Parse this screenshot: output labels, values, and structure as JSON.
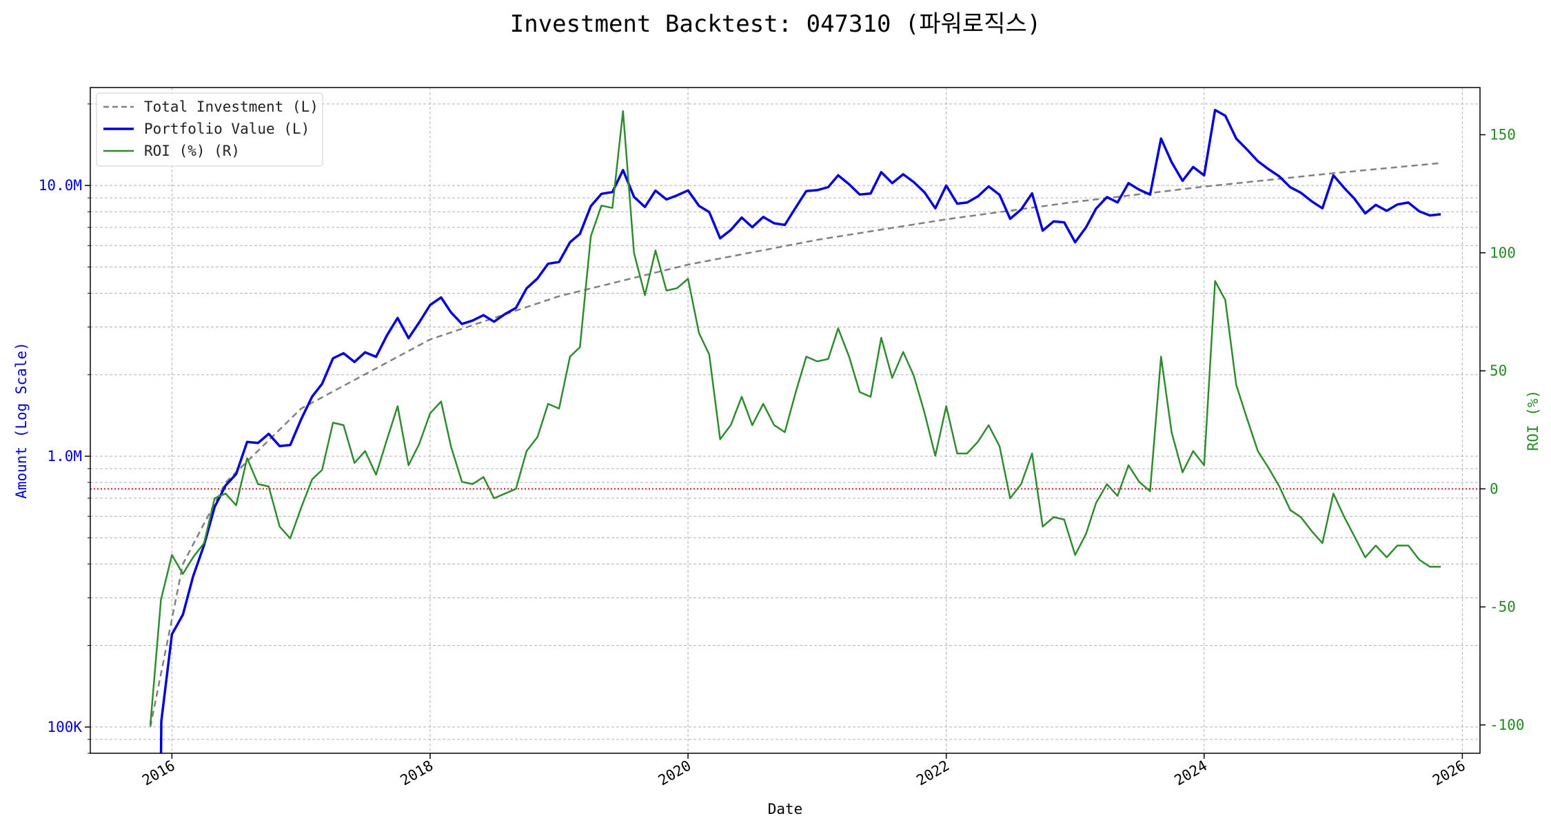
{
  "chart_data": {
    "type": "line",
    "title": "Investment Backtest: 047310 (파워로직스)",
    "xlabel": "Date",
    "ylabel_left": "Amount (Log Scale)",
    "ylabel_right": "ROI (%)",
    "left_scale": "log",
    "left_ylim": [
      80000,
      23000000
    ],
    "right_ylim": [
      -112,
      170
    ],
    "xlim": [
      "2015-05-15",
      "2026-02-20"
    ],
    "x_ticks": [
      "2016",
      "2018",
      "2020",
      "2022",
      "2024",
      "2026"
    ],
    "left_ticks": [
      {
        "value": 100000,
        "label": "100K"
      },
      {
        "value": 1000000,
        "label": "1.0M"
      },
      {
        "value": 10000000,
        "label": "10.0M"
      }
    ],
    "right_ticks": [
      {
        "value": 150,
        "label": "150"
      },
      {
        "value": 100,
        "label": "100"
      },
      {
        "value": 50,
        "label": "50"
      },
      {
        "value": 0,
        "label": "0"
      },
      {
        "value": -50,
        "label": "-50"
      },
      {
        "value": -100,
        "label": "-100"
      }
    ],
    "zero_reference_line": {
      "axis": "right",
      "value": 0,
      "color": "#cc0000",
      "style": "dotted"
    },
    "grid": true,
    "legend_position": "top-left",
    "colors": {
      "total": "#808080",
      "portfolio": "#0000dd",
      "roi": "#2e8b2e"
    },
    "series": [
      {
        "name": "Total Investment (L)",
        "axis": "left",
        "style": "dashed",
        "color": "#808080",
        "points": [
          [
            "2015-11-01",
            100000
          ],
          [
            "2016-02-01",
            400000
          ],
          [
            "2016-06-01",
            800000
          ],
          [
            "2017-01-01",
            1500000
          ],
          [
            "2018-01-01",
            2700000
          ],
          [
            "2019-01-01",
            3900000
          ],
          [
            "2020-01-01",
            5100000
          ],
          [
            "2021-01-01",
            6300000
          ],
          [
            "2022-01-01",
            7500000
          ],
          [
            "2023-01-01",
            8700000
          ],
          [
            "2024-01-01",
            9900000
          ],
          [
            "2025-01-01",
            11100000
          ],
          [
            "2025-11-01",
            12100000
          ]
        ]
      },
      {
        "name": "Portfolio Value (L)",
        "axis": "left",
        "style": "solid",
        "color": "#0000dd",
        "points": [
          [
            "2015-12-01",
            75000
          ],
          [
            "2015-12-02",
            105000
          ],
          [
            "2016-01-01",
            220000
          ],
          [
            "2016-02-01",
            260000
          ],
          [
            "2016-03-01",
            360000
          ],
          [
            "2016-04-01",
            470000
          ],
          [
            "2016-05-01",
            650000
          ],
          [
            "2016-06-01",
            780000
          ],
          [
            "2016-07-01",
            860000
          ],
          [
            "2016-08-01",
            1130000
          ],
          [
            "2016-09-01",
            1120000
          ],
          [
            "2016-10-01",
            1210000
          ],
          [
            "2016-11-01",
            1090000
          ],
          [
            "2016-12-01",
            1100000
          ],
          [
            "2017-01-01",
            1370000
          ],
          [
            "2017-02-01",
            1660000
          ],
          [
            "2017-03-01",
            1850000
          ],
          [
            "2017-04-01",
            2300000
          ],
          [
            "2017-05-01",
            2400000
          ],
          [
            "2017-06-01",
            2230000
          ],
          [
            "2017-07-01",
            2420000
          ],
          [
            "2017-08-01",
            2330000
          ],
          [
            "2017-09-01",
            2800000
          ],
          [
            "2017-10-01",
            3240000
          ],
          [
            "2017-11-01",
            2730000
          ],
          [
            "2017-12-01",
            3120000
          ],
          [
            "2018-01-01",
            3620000
          ],
          [
            "2018-02-01",
            3860000
          ],
          [
            "2018-03-01",
            3400000
          ],
          [
            "2018-04-01",
            3080000
          ],
          [
            "2018-05-01",
            3170000
          ],
          [
            "2018-06-01",
            3320000
          ],
          [
            "2018-07-01",
            3140000
          ],
          [
            "2018-08-01",
            3350000
          ],
          [
            "2018-09-01",
            3530000
          ],
          [
            "2018-10-01",
            4170000
          ],
          [
            "2018-11-01",
            4540000
          ],
          [
            "2018-12-01",
            5140000
          ],
          [
            "2019-01-01",
            5220000
          ],
          [
            "2019-02-01",
            6170000
          ],
          [
            "2019-03-01",
            6630000
          ],
          [
            "2019-04-01",
            8390000
          ],
          [
            "2019-05-01",
            9310000
          ],
          [
            "2019-06-01",
            9460000
          ],
          [
            "2019-07-01",
            11400000
          ],
          [
            "2019-08-01",
            9080000
          ],
          [
            "2019-09-01",
            8330000
          ],
          [
            "2019-10-01",
            9570000
          ],
          [
            "2019-11-01",
            8880000
          ],
          [
            "2019-12-01",
            9190000
          ],
          [
            "2020-01-01",
            9590000
          ],
          [
            "2020-02-01",
            8410000
          ],
          [
            "2020-03-01",
            7980000
          ],
          [
            "2020-04-01",
            6380000
          ],
          [
            "2020-05-01",
            6850000
          ],
          [
            "2020-06-01",
            7610000
          ],
          [
            "2020-07-01",
            7010000
          ],
          [
            "2020-08-01",
            7650000
          ],
          [
            "2020-09-01",
            7250000
          ],
          [
            "2020-10-01",
            7150000
          ],
          [
            "2020-11-01",
            8290000
          ],
          [
            "2020-12-01",
            9540000
          ],
          [
            "2021-01-01",
            9610000
          ],
          [
            "2021-02-01",
            9860000
          ],
          [
            "2021-03-01",
            10900000
          ],
          [
            "2021-04-01",
            10100000
          ],
          [
            "2021-05-01",
            9260000
          ],
          [
            "2021-06-01",
            9340000
          ],
          [
            "2021-07-01",
            11200000
          ],
          [
            "2021-08-01",
            10200000
          ],
          [
            "2021-09-01",
            11000000
          ],
          [
            "2021-10-01",
            10300000
          ],
          [
            "2021-11-01",
            9420000
          ],
          [
            "2021-12-01",
            8240000
          ],
          [
            "2022-01-01",
            9990000
          ],
          [
            "2022-02-01",
            8570000
          ],
          [
            "2022-03-01",
            8650000
          ],
          [
            "2022-04-01",
            9120000
          ],
          [
            "2022-05-01",
            9920000
          ],
          [
            "2022-06-01",
            9230000
          ],
          [
            "2022-07-01",
            7530000
          ],
          [
            "2022-08-01",
            8150000
          ],
          [
            "2022-09-01",
            9350000
          ],
          [
            "2022-10-01",
            6810000
          ],
          [
            "2022-11-01",
            7370000
          ],
          [
            "2022-12-01",
            7310000
          ],
          [
            "2023-01-01",
            6170000
          ],
          [
            "2023-02-01",
            7010000
          ],
          [
            "2023-03-01",
            8210000
          ],
          [
            "2023-04-01",
            9060000
          ],
          [
            "2023-05-01",
            8660000
          ],
          [
            "2023-06-01",
            10200000
          ],
          [
            "2023-07-01",
            9650000
          ],
          [
            "2023-08-01",
            9250000
          ],
          [
            "2023-09-01",
            14900000
          ],
          [
            "2023-10-01",
            12200000
          ],
          [
            "2023-11-01",
            10400000
          ],
          [
            "2023-12-01",
            11700000
          ],
          [
            "2024-01-01",
            10900000
          ],
          [
            "2024-02-01",
            19000000
          ],
          [
            "2024-03-01",
            18100000
          ],
          [
            "2024-04-01",
            14900000
          ],
          [
            "2024-05-01",
            13600000
          ],
          [
            "2024-06-01",
            12300000
          ],
          [
            "2024-07-01",
            11500000
          ],
          [
            "2024-08-01",
            10800000
          ],
          [
            "2024-09-01",
            9850000
          ],
          [
            "2024-10-01",
            9400000
          ],
          [
            "2024-11-01",
            8730000
          ],
          [
            "2024-12-01",
            8240000
          ],
          [
            "2025-01-01",
            10900000
          ],
          [
            "2025-02-01",
            9780000
          ],
          [
            "2025-03-01",
            8950000
          ],
          [
            "2025-04-01",
            7890000
          ],
          [
            "2025-05-01",
            8480000
          ],
          [
            "2025-06-01",
            8060000
          ],
          [
            "2025-07-01",
            8510000
          ],
          [
            "2025-08-01",
            8650000
          ],
          [
            "2025-09-01",
            8030000
          ],
          [
            "2025-10-01",
            7750000
          ],
          [
            "2025-11-01",
            7830000
          ]
        ]
      },
      {
        "name": "ROI (%) (R)",
        "axis": "right",
        "style": "solid",
        "color": "#2e8b2e",
        "points": [
          [
            "2015-11-01",
            -100
          ],
          [
            "2015-12-01",
            -47
          ],
          [
            "2016-01-01",
            -28
          ],
          [
            "2016-02-01",
            -36
          ],
          [
            "2016-03-01",
            -29
          ],
          [
            "2016-04-01",
            -23
          ],
          [
            "2016-05-01",
            -4
          ],
          [
            "2016-06-01",
            -2
          ],
          [
            "2016-07-01",
            -7
          ],
          [
            "2016-08-01",
            13
          ],
          [
            "2016-09-01",
            2
          ],
          [
            "2016-10-01",
            1
          ],
          [
            "2016-11-01",
            -16
          ],
          [
            "2016-12-01",
            -21
          ],
          [
            "2017-01-01",
            -8
          ],
          [
            "2017-02-01",
            4
          ],
          [
            "2017-03-01",
            8
          ],
          [
            "2017-04-01",
            28
          ],
          [
            "2017-05-01",
            27
          ],
          [
            "2017-06-01",
            11
          ],
          [
            "2017-07-01",
            16
          ],
          [
            "2017-08-01",
            6
          ],
          [
            "2017-09-01",
            21
          ],
          [
            "2017-10-01",
            35
          ],
          [
            "2017-11-01",
            10
          ],
          [
            "2017-12-01",
            19
          ],
          [
            "2018-01-01",
            32
          ],
          [
            "2018-02-01",
            37
          ],
          [
            "2018-03-01",
            18
          ],
          [
            "2018-04-01",
            3
          ],
          [
            "2018-05-01",
            2
          ],
          [
            "2018-06-01",
            5
          ],
          [
            "2018-07-01",
            -4
          ],
          [
            "2018-08-01",
            -2
          ],
          [
            "2018-09-01",
            0
          ],
          [
            "2018-10-01",
            16
          ],
          [
            "2018-11-01",
            22
          ],
          [
            "2018-12-01",
            36
          ],
          [
            "2019-01-01",
            34
          ],
          [
            "2019-02-01",
            56
          ],
          [
            "2019-03-01",
            60
          ],
          [
            "2019-04-01",
            107
          ],
          [
            "2019-05-01",
            120
          ],
          [
            "2019-06-01",
            119
          ],
          [
            "2019-07-01",
            160
          ],
          [
            "2019-08-01",
            100
          ],
          [
            "2019-09-01",
            82
          ],
          [
            "2019-10-01",
            101
          ],
          [
            "2019-11-01",
            84
          ],
          [
            "2019-12-01",
            85
          ],
          [
            "2020-01-01",
            89
          ],
          [
            "2020-02-01",
            66
          ],
          [
            "2020-03-01",
            57
          ],
          [
            "2020-04-01",
            21
          ],
          [
            "2020-05-01",
            27
          ],
          [
            "2020-06-01",
            39
          ],
          [
            "2020-07-01",
            27
          ],
          [
            "2020-08-01",
            36
          ],
          [
            "2020-09-01",
            27
          ],
          [
            "2020-10-01",
            24
          ],
          [
            "2020-11-01",
            41
          ],
          [
            "2020-12-01",
            56
          ],
          [
            "2021-01-01",
            54
          ],
          [
            "2021-02-01",
            55
          ],
          [
            "2021-03-01",
            68
          ],
          [
            "2021-04-01",
            56
          ],
          [
            "2021-05-01",
            41
          ],
          [
            "2021-06-01",
            39
          ],
          [
            "2021-07-01",
            64
          ],
          [
            "2021-08-01",
            47
          ],
          [
            "2021-09-01",
            58
          ],
          [
            "2021-10-01",
            48
          ],
          [
            "2021-11-01",
            32
          ],
          [
            "2021-12-01",
            14
          ],
          [
            "2022-01-01",
            35
          ],
          [
            "2022-02-01",
            15
          ],
          [
            "2022-03-01",
            15
          ],
          [
            "2022-04-01",
            20
          ],
          [
            "2022-05-01",
            27
          ],
          [
            "2022-06-01",
            18
          ],
          [
            "2022-07-01",
            -4
          ],
          [
            "2022-08-01",
            2
          ],
          [
            "2022-09-01",
            15
          ],
          [
            "2022-10-01",
            -16
          ],
          [
            "2022-11-01",
            -12
          ],
          [
            "2022-12-01",
            -13
          ],
          [
            "2023-01-01",
            -28
          ],
          [
            "2023-02-01",
            -19
          ],
          [
            "2023-03-01",
            -6
          ],
          [
            "2023-04-01",
            2
          ],
          [
            "2023-05-01",
            -3
          ],
          [
            "2023-06-01",
            10
          ],
          [
            "2023-07-01",
            3
          ],
          [
            "2023-08-01",
            -1
          ],
          [
            "2023-09-01",
            56
          ],
          [
            "2023-10-01",
            24
          ],
          [
            "2023-11-01",
            7
          ],
          [
            "2023-12-01",
            16
          ],
          [
            "2024-01-01",
            10
          ],
          [
            "2024-02-01",
            88
          ],
          [
            "2024-03-01",
            80
          ],
          [
            "2024-04-01",
            44
          ],
          [
            "2024-05-01",
            30
          ],
          [
            "2024-06-01",
            16
          ],
          [
            "2024-07-01",
            9
          ],
          [
            "2024-08-01",
            1
          ],
          [
            "2024-09-01",
            -9
          ],
          [
            "2024-10-01",
            -12
          ],
          [
            "2024-11-01",
            -18
          ],
          [
            "2024-12-01",
            -23
          ],
          [
            "2025-01-01",
            -2
          ],
          [
            "2025-02-01",
            -12
          ],
          [
            "2025-03-01",
            -20
          ],
          [
            "2025-04-01",
            -29
          ],
          [
            "2025-05-01",
            -24
          ],
          [
            "2025-06-01",
            -29
          ],
          [
            "2025-07-01",
            -24
          ],
          [
            "2025-08-01",
            -24
          ],
          [
            "2025-09-01",
            -30
          ],
          [
            "2025-10-01",
            -33
          ],
          [
            "2025-11-01",
            -33
          ]
        ]
      }
    ]
  }
}
